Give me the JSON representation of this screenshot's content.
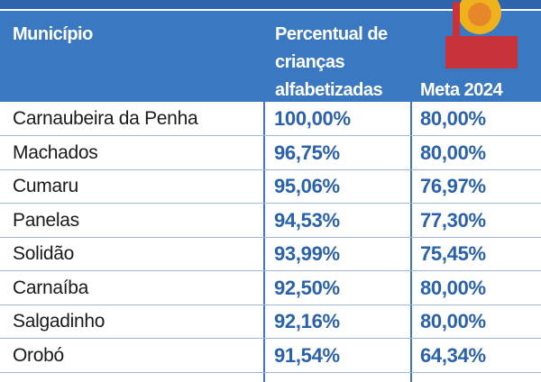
{
  "table": {
    "header": [
      "Município",
      "Percentual de crianças alfabetizadas",
      "Meta 2024"
    ],
    "rows": [
      [
        "Carnaubeira da Penha",
        "100,00%",
        "80,00%"
      ],
      [
        "Machados",
        "96,75%",
        "80,00%"
      ],
      [
        "Cumaru",
        "95,06%",
        "76,97%"
      ],
      [
        "Panelas",
        "94,53%",
        "77,30%"
      ],
      [
        "Solidão",
        "93,99%",
        "75,45%"
      ],
      [
        "Carnaíba",
        "92,50%",
        "80,00%"
      ],
      [
        "Salgadinho",
        "92,16%",
        "80,00%"
      ],
      [
        "Orobó",
        "91,54%",
        "64,34%"
      ]
    ]
  }
}
